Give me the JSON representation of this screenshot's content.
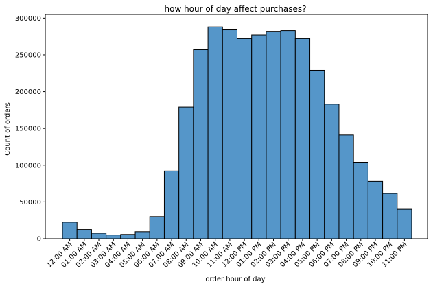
{
  "chart_data": {
    "type": "bar",
    "title": "how hour of day affect purchases?",
    "xlabel": "order hour of day",
    "ylabel": "Count of orders",
    "ylim": [
      0,
      305000
    ],
    "yticks": [
      0,
      50000,
      100000,
      150000,
      200000,
      250000,
      300000
    ],
    "grid": false,
    "categories": [
      "12:00 AM",
      "01:00 AM",
      "02:00 AM",
      "03:00 AM",
      "04:00 AM",
      "05:00 AM",
      "06:00 AM",
      "07:00 AM",
      "08:00 AM",
      "09:00 AM",
      "10:00 AM",
      "11:00 AM",
      "12:00 PM",
      "01:00 PM",
      "02:00 PM",
      "03:00 PM",
      "04:00 PM",
      "05:00 PM",
      "06:00 PM",
      "07:00 PM",
      "08:00 PM",
      "09:00 PM",
      "10:00 PM",
      "11:00 PM"
    ],
    "values": [
      22500,
      12500,
      7500,
      5000,
      5800,
      9500,
      30000,
      92000,
      179000,
      257000,
      288000,
      284000,
      272000,
      277000,
      282000,
      283000,
      272000,
      229000,
      183000,
      141000,
      104000,
      78000,
      61500,
      40000
    ],
    "colors": {
      "bar_fill": "#5596c9",
      "bar_edge": "#000000",
      "axis": "#000000",
      "background": "#ffffff"
    }
  }
}
